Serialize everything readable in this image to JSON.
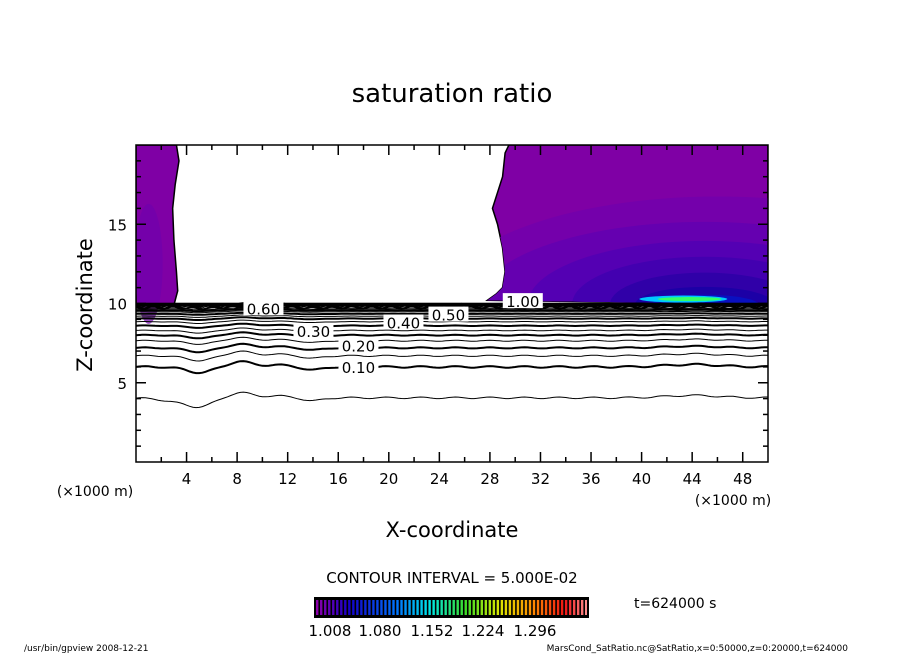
{
  "chart_data": {
    "type": "contour",
    "title": "saturation ratio",
    "xlabel": "X-coordinate",
    "ylabel": "Z-coordinate",
    "x_unit_label": "(×1000 m)",
    "z_unit_label": "(×1000 m)",
    "xlim": [
      0,
      50
    ],
    "ylim": [
      0,
      20
    ],
    "x_ticks": [
      4,
      8,
      12,
      16,
      20,
      24,
      28,
      32,
      36,
      40,
      44,
      48
    ],
    "x_tick_labels": [
      "4",
      "8",
      "12",
      "16",
      "20",
      "24",
      "28",
      "32",
      "36",
      "40",
      "44",
      "48"
    ],
    "y_ticks": [
      5,
      10,
      15
    ],
    "y_tick_labels": [
      "5",
      "10",
      "15"
    ],
    "contour_interval_text": "CONTOUR INTERVAL = 5.000E-02",
    "contour_levels": [
      0.05,
      0.1,
      0.15,
      0.2,
      0.25,
      0.3,
      0.35,
      0.4,
      0.45,
      0.5,
      0.55,
      0.6,
      0.65,
      0.7,
      0.75,
      0.8,
      0.85,
      0.9,
      0.95
    ],
    "contour_level_heights_z": [
      3.9,
      6.0,
      6.7,
      7.2,
      7.65,
      8.0,
      8.3,
      8.6,
      8.85,
      9.05,
      9.2,
      9.35,
      9.48,
      9.58,
      9.67,
      9.75,
      9.82,
      9.88,
      9.94
    ],
    "contour_labels": [
      {
        "text": "0.10",
        "x": 17.6,
        "z": 6.0
      },
      {
        "text": "0.20",
        "x": 17.6,
        "z": 7.35
      },
      {
        "text": "0.30",
        "x": 17.6,
        "z": 8.25
      },
      {
        "text": "0.40",
        "x": 17.6,
        "z": 8.8
      },
      {
        "text": "0.50",
        "x": 17.6,
        "z": 9.3
      },
      {
        "text": "0.60",
        "x": 17.6,
        "z": 9.7
      },
      {
        "text": "1.00",
        "x": 30.6,
        "z": 10.15
      }
    ],
    "shaded_range": [
      1.008,
      1.3
    ],
    "colorbar_labels": [
      "1.008",
      "1.080",
      "1.152",
      "1.224",
      "1.296"
    ],
    "colors": {
      "base": "#7f00a5",
      "deep": "#1a00a0",
      "peak": "#33ff66"
    },
    "time_label": "t=624000 s"
  },
  "footer": {
    "left": "/usr/bin/gpview  2008-12-21",
    "right": "MarsCond_SatRatio.nc@SatRatio,x=0:50000,z=0:20000,t=624000"
  }
}
